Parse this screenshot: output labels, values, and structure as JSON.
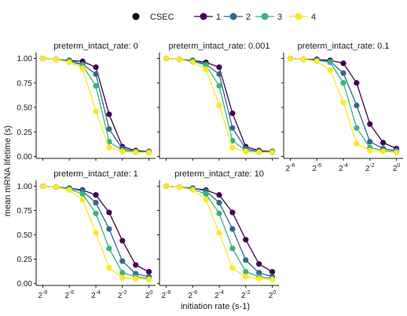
{
  "chart_data": {
    "type": "line",
    "xlabel": "initiation rate (s-1)",
    "ylabel": "mean mRNA lifetime (s)",
    "facet_prefix": "preterm_intact_rate: ",
    "x_ticks": [
      {
        "base": "2",
        "exp": "-8"
      },
      {
        "base": "2",
        "exp": "-6"
      },
      {
        "base": "2",
        "exp": "-4"
      },
      {
        "base": "2",
        "exp": "-2"
      },
      {
        "base": "2",
        "exp": "0"
      }
    ],
    "x_tick_values": [
      -8,
      -6,
      -4,
      -2,
      0
    ],
    "x_scale": "log2",
    "xlim": [
      -8.5,
      0.5
    ],
    "y_ticks": [
      "0.00",
      "0.25",
      "0.50",
      "0.75",
      "1.00"
    ],
    "ylim": [
      -0.02,
      1.06
    ],
    "x": [
      -8,
      -7,
      -6,
      -5,
      -4,
      -3,
      -2,
      -1,
      0
    ],
    "legend": {
      "position": "top",
      "items": [
        {
          "key": "csec",
          "label": "CSEC",
          "color": "#000000"
        },
        {
          "key": "1",
          "label": "1",
          "color": "#440154"
        },
        {
          "key": "2",
          "label": "2",
          "color": "#31688e"
        },
        {
          "key": "3",
          "label": "3",
          "color": "#35b779"
        },
        {
          "key": "4",
          "label": "4",
          "color": "#fde725"
        }
      ]
    },
    "panels": [
      {
        "title": "preterm_intact_rate: 0",
        "series": [
          {
            "name": "1",
            "values": [
              1.0,
              0.99,
              0.98,
              0.97,
              0.91,
              0.43,
              0.1,
              0.06,
              0.05
            ]
          },
          {
            "name": "2",
            "values": [
              1.0,
              0.99,
              0.98,
              0.94,
              0.84,
              0.28,
              0.08,
              0.05,
              0.05
            ]
          },
          {
            "name": "3",
            "values": [
              1.0,
              0.99,
              0.97,
              0.93,
              0.72,
              0.15,
              0.06,
              0.05,
              0.04
            ]
          },
          {
            "name": "4",
            "values": [
              1.0,
              0.99,
              0.96,
              0.9,
              0.46,
              0.09,
              0.05,
              0.04,
              0.04
            ]
          }
        ]
      },
      {
        "title": "preterm_intact_rate: 0.001",
        "series": [
          {
            "name": "1",
            "values": [
              1.0,
              0.99,
              0.98,
              0.96,
              0.91,
              0.44,
              0.1,
              0.06,
              0.05
            ]
          },
          {
            "name": "2",
            "values": [
              1.0,
              0.99,
              0.98,
              0.94,
              0.84,
              0.29,
              0.08,
              0.05,
              0.05
            ]
          },
          {
            "name": "3",
            "values": [
              1.0,
              0.99,
              0.97,
              0.93,
              0.72,
              0.16,
              0.06,
              0.05,
              0.04
            ]
          },
          {
            "name": "4",
            "values": [
              1.0,
              0.99,
              0.96,
              0.89,
              0.52,
              0.09,
              0.05,
              0.04,
              0.04
            ]
          }
        ]
      },
      {
        "title": "preterm_intact_rate: 0.1",
        "series": [
          {
            "name": "1",
            "values": [
              1.0,
              0.99,
              0.99,
              0.98,
              0.95,
              0.75,
              0.33,
              0.14,
              0.08
            ]
          },
          {
            "name": "2",
            "values": [
              1.0,
              0.99,
              0.98,
              0.97,
              0.85,
              0.52,
              0.15,
              0.08,
              0.06
            ]
          },
          {
            "name": "3",
            "values": [
              1.0,
              0.99,
              0.98,
              0.96,
              0.75,
              0.29,
              0.09,
              0.06,
              0.05
            ]
          },
          {
            "name": "4",
            "values": [
              1.0,
              0.99,
              0.97,
              0.88,
              0.55,
              0.13,
              0.06,
              0.05,
              0.04
            ]
          }
        ]
      },
      {
        "title": "preterm_intact_rate: 1",
        "series": [
          {
            "name": "1",
            "values": [
              1.0,
              0.99,
              0.98,
              0.96,
              0.91,
              0.73,
              0.44,
              0.19,
              0.12
            ]
          },
          {
            "name": "2",
            "values": [
              1.0,
              0.99,
              0.98,
              0.95,
              0.83,
              0.56,
              0.23,
              0.1,
              0.07
            ]
          },
          {
            "name": "3",
            "values": [
              1.0,
              0.99,
              0.97,
              0.92,
              0.72,
              0.36,
              0.11,
              0.07,
              0.05
            ]
          },
          {
            "name": "4",
            "values": [
              1.0,
              0.99,
              0.96,
              0.86,
              0.52,
              0.16,
              0.06,
              0.05,
              0.04
            ]
          }
        ]
      },
      {
        "title": "preterm_intact_rate: 10",
        "series": [
          {
            "name": "1",
            "values": [
              1.0,
              0.99,
              0.98,
              0.96,
              0.91,
              0.73,
              0.45,
              0.2,
              0.12
            ]
          },
          {
            "name": "2",
            "values": [
              1.0,
              0.99,
              0.98,
              0.95,
              0.83,
              0.56,
              0.24,
              0.11,
              0.07
            ]
          },
          {
            "name": "3",
            "values": [
              1.0,
              0.99,
              0.97,
              0.92,
              0.72,
              0.36,
              0.12,
              0.07,
              0.05
            ]
          },
          {
            "name": "4",
            "values": [
              1.0,
              0.99,
              0.96,
              0.86,
              0.52,
              0.16,
              0.07,
              0.05,
              0.04
            ]
          }
        ]
      }
    ]
  }
}
